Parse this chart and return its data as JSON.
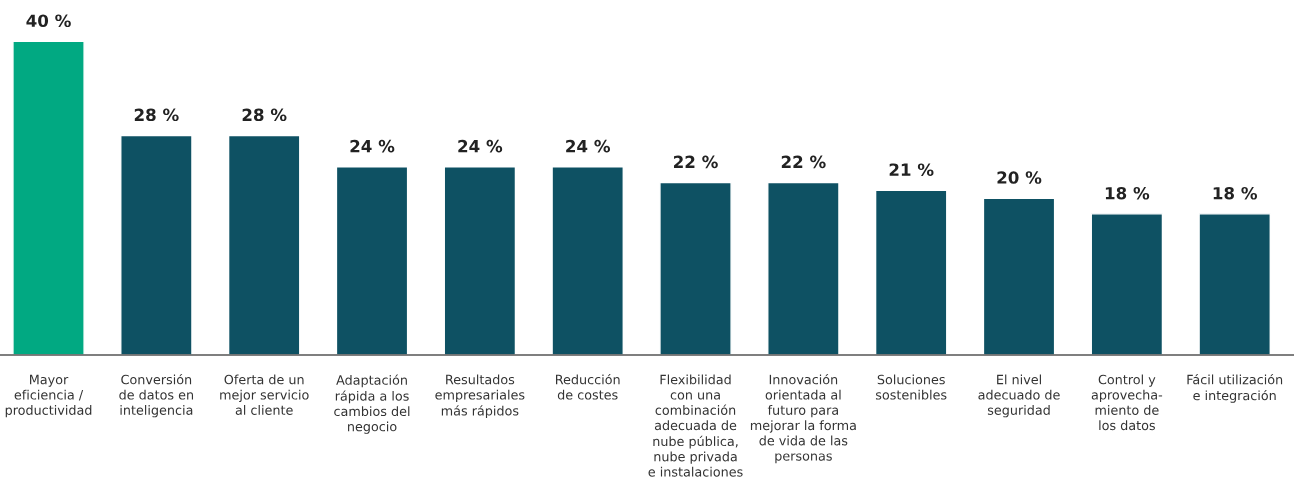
{
  "chart_data": {
    "type": "bar",
    "categories": [
      "Mayor\neficiencia /\nproductividad",
      "Conversión\nde datos en\ninteligencia",
      "Oferta de un\nmejor servicio\nal cliente",
      "Adaptación\nrápida a los\ncambios del\nnegocio",
      "Resultados\nempresariales\nmás rápidos",
      "Reducción\nde costes",
      "Flexibilidad\ncon una\ncombinación\nadecuada de\nnube pública,\nnube privada\ne instalaciones",
      "Innovación\norientada al\nfuturo para\nmejorar la forma\nde vida de las\npersonas",
      "Soluciones\nsostenibles",
      "El nivel\nadecuado de\nseguridad",
      "Control y\naprovecha-\nmiento de\nlos datos",
      "Fácil utilización\ne integración"
    ],
    "values": [
      40,
      28,
      28,
      24,
      24,
      24,
      22,
      22,
      21,
      20,
      18,
      18
    ],
    "value_labels": [
      "40 %",
      "28 %",
      "28 %",
      "24 %",
      "24 %",
      "24 %",
      "22 %",
      "22 %",
      "21 %",
      "20 %",
      "18 %",
      "18 %"
    ],
    "colors": [
      "#01a982",
      "#0e5163",
      "#0e5163",
      "#0e5163",
      "#0e5163",
      "#0e5163",
      "#0e5163",
      "#0e5163",
      "#0e5163",
      "#0e5163",
      "#0e5163",
      "#0e5163"
    ],
    "grid": false,
    "legend": false
  }
}
